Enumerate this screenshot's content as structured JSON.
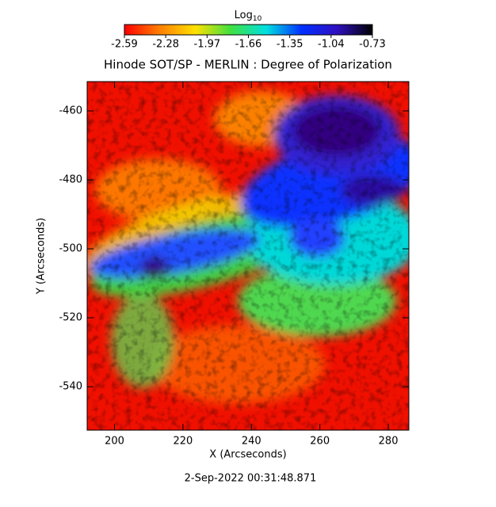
{
  "chart_data": {
    "type": "heatmap",
    "title": "Hinode SOT/SP - MERLIN : Degree of Polarization",
    "x_label": "X (Arcseconds)",
    "y_label": "Y (Arcseconds)",
    "date": "2-Sep-2022 00:31:48.871",
    "xlim": [
      192,
      286
    ],
    "xticks": [
      200,
      220,
      240,
      260,
      280
    ],
    "ylim": [
      -552.6,
      -451.5
    ],
    "yticks": [
      -460,
      -480,
      -500,
      -520,
      -540
    ],
    "colorbar_label": "Log",
    "colorbar_label_sub": "10",
    "colorbar_lim": [
      -2.59,
      -0.73
    ],
    "colorbar_ticks": [
      -2.59,
      -2.28,
      -1.97,
      -1.66,
      -1.35,
      -1.04,
      -0.73
    ],
    "colormap": [
      "#ff0000",
      "#ff8000",
      "#ffe000",
      "#40e040",
      "#00e0e0",
      "#0030ff",
      "#3010c0",
      "#000000"
    ]
  }
}
